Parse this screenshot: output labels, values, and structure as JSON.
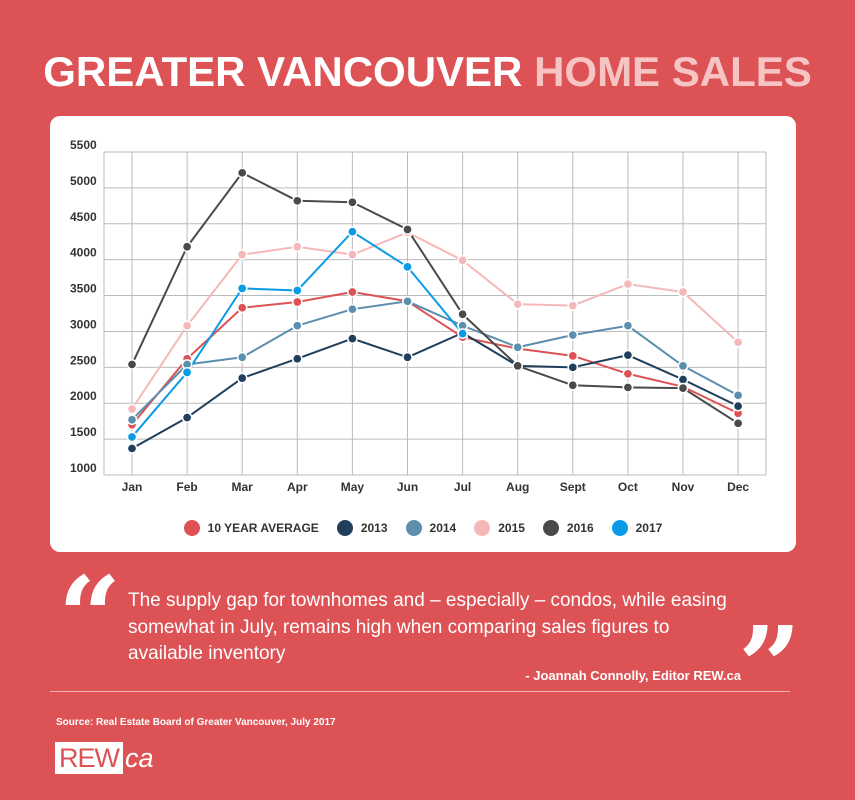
{
  "header": {
    "title_main": "GREATER VANCOUVER",
    "title_accent": "HOME SALES"
  },
  "colors": {
    "background": "#dd5255",
    "accent_title": "#f7c4c4"
  },
  "chart_data": {
    "type": "line",
    "categories": [
      "Jan",
      "Feb",
      "Mar",
      "Apr",
      "May",
      "Jun",
      "Jul",
      "Aug",
      "Sept",
      "Oct",
      "Nov",
      "Dec"
    ],
    "ylim": [
      1000,
      5500
    ],
    "yticks": [
      1000,
      1500,
      2000,
      2500,
      3000,
      3500,
      4000,
      4500,
      5000,
      5500
    ],
    "grid": true,
    "legend_position": "bottom",
    "series": [
      {
        "name": "10 YEAR AVERAGE",
        "color": "#dd5255",
        "values": [
          1700,
          2620,
          3330,
          3410,
          3550,
          3420,
          2920,
          2760,
          2660,
          2410,
          2230,
          1860
        ]
      },
      {
        "name": "2013",
        "color": "#1f3f5c",
        "values": [
          1370,
          1800,
          2350,
          2620,
          2900,
          2640,
          2980,
          2520,
          2500,
          2670,
          2330,
          1960
        ]
      },
      {
        "name": "2014",
        "color": "#5b8fad",
        "values": [
          1770,
          2540,
          2640,
          3080,
          3310,
          3420,
          3080,
          2780,
          2950,
          3080,
          2520,
          2110
        ]
      },
      {
        "name": "2015",
        "color": "#f5b8b8",
        "values": [
          1920,
          3080,
          4070,
          4180,
          4070,
          4380,
          3990,
          3380,
          3360,
          3660,
          3550,
          2850
        ]
      },
      {
        "name": "2016",
        "color": "#4a4a4a",
        "values": [
          2540,
          4180,
          5210,
          4820,
          4800,
          4420,
          3240,
          2520,
          2250,
          2220,
          2210,
          1720
        ]
      },
      {
        "name": "2017",
        "color": "#0a9be6",
        "values": [
          1530,
          2430,
          3600,
          3570,
          4390,
          3900,
          2970,
          null,
          null,
          null,
          null,
          null
        ]
      }
    ]
  },
  "quote": {
    "open_mark": "“",
    "close_mark": "”",
    "text": " The supply gap for townhomes and – especially – condos, while easing somewhat in July, remains high when comparing sales figures to available inventory",
    "author": "- Joannah Connolly, Editor REW.ca"
  },
  "source": "Source:  Real Estate Board of Greater Vancouver, July 2017",
  "logo": {
    "box_text": "REW",
    "rest_text": "ca"
  }
}
